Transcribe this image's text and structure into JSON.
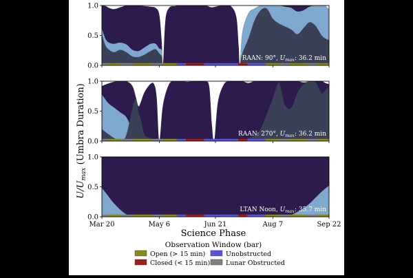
{
  "ylabel": "U/U",
  "ylabel_sub": "max",
  "ylabel_rest": " (Umbra Duration)",
  "xlabel": "Science Phase",
  "colors": {
    "dark_fill": "#2d1b4e",
    "light_fill": "#7fa8cf",
    "grey_fill": "#3a4055",
    "open": "#8a8a1a",
    "closed": "#9c1f1f",
    "unobstructed": "#5c54d6",
    "lunar": "#808080"
  },
  "legend": {
    "title": "Observation Window (bar)",
    "items": [
      {
        "label": "Open (> 15 min)",
        "color": "#8a8a1a"
      },
      {
        "label": "Unobstructed",
        "color": "#5c54d6"
      },
      {
        "label": "Closed (< 15 min)",
        "color": "#9c1f1f"
      },
      {
        "label": "Lunar Obstructed",
        "color": "#808080"
      }
    ]
  },
  "chart_data": [
    {
      "type": "area",
      "annotation_prefix": "RAAN: 90°, ",
      "annotation_u": "U",
      "annotation_sub": "max",
      "annotation_suffix": ": 36.2 min",
      "ylim": [
        0.0,
        1.0
      ],
      "yticks": [
        "0.0",
        "0.5",
        "1.0"
      ],
      "xlim": [
        0,
        186
      ],
      "xticks": [
        {
          "x": 0,
          "label": "Mar 20"
        },
        {
          "x": 47,
          "label": "May 6"
        },
        {
          "x": 93,
          "label": "Jun 21"
        },
        {
          "x": 140,
          "label": "Aug 7"
        },
        {
          "x": 186,
          "label": "Sep 22"
        }
      ],
      "x": [
        0,
        3,
        6,
        10,
        15,
        20,
        25,
        30,
        35,
        40,
        44,
        47,
        49,
        50,
        52,
        55,
        60,
        65,
        70,
        75,
        80,
        85,
        90,
        95,
        100,
        105,
        110,
        112,
        113,
        115,
        120,
        125,
        130,
        135,
        140,
        145,
        150,
        155,
        160,
        165,
        170,
        175,
        180,
        183,
        186
      ],
      "series": [
        {
          "values": [
            1.0,
            0.99,
            0.96,
            0.94,
            0.97,
            1.0,
            1.0,
            1.0,
            0.99,
            0.98,
            0.96,
            0.85,
            0.4,
            0.0,
            0.75,
            0.96,
            0.99,
            1.0,
            1.0,
            1.0,
            1.0,
            1.0,
            0.97,
            0.99,
            1.0,
            1.0,
            0.82,
            0.32,
            0.0,
            0.55,
            0.87,
            0.95,
            1.0,
            1.0,
            1.0,
            1.0,
            1.0,
            1.0,
            1.0,
            1.0,
            1.0,
            1.0,
            1.0,
            1.0,
            0.93
          ]
        },
        {
          "values": [
            0.62,
            0.44,
            0.38,
            0.36,
            0.38,
            0.35,
            0.26,
            0.24,
            0.3,
            0.36,
            0.36,
            0.28,
            0.25,
            0.0,
            0.0,
            0.0,
            0.0,
            0.0,
            0.0,
            0.0,
            0.0,
            0.0,
            0.0,
            0.0,
            0.0,
            0.0,
            0.0,
            0.0,
            0.0,
            0.55,
            0.87,
            0.95,
            1.0,
            1.0,
            1.0,
            1.0,
            0.98,
            0.96,
            0.9,
            0.92,
            0.98,
            1.0,
            1.0,
            1.0,
            0.93
          ]
        },
        {
          "values": [
            0.52,
            0.33,
            0.26,
            0.22,
            0.26,
            0.22,
            0.15,
            0.14,
            0.18,
            0.24,
            0.27,
            0.2,
            0.15,
            0.0,
            0.0,
            0.0,
            0.0,
            0.0,
            0.0,
            0.0,
            0.0,
            0.0,
            0.0,
            0.0,
            0.0,
            0.0,
            0.0,
            0.0,
            0.0,
            0.2,
            0.45,
            0.75,
            0.92,
            0.95,
            0.78,
            0.7,
            0.65,
            0.6,
            0.52,
            0.62,
            0.72,
            0.66,
            0.5,
            0.45,
            0.42
          ]
        }
      ]
    },
    {
      "type": "area",
      "annotation_prefix": "RAAN: 270°, ",
      "annotation_u": "U",
      "annotation_sub": "max",
      "annotation_suffix": ": 36.2 min",
      "ylim": [
        0.0,
        1.0
      ],
      "yticks": [
        "0.0",
        "0.5",
        "1.0"
      ],
      "xlim": [
        0,
        186
      ],
      "xticks": [
        {
          "x": 0,
          "label": "Mar 20"
        },
        {
          "x": 47,
          "label": "May 6"
        },
        {
          "x": 93,
          "label": "Jun 21"
        },
        {
          "x": 140,
          "label": "Aug 7"
        },
        {
          "x": 186,
          "label": "Sep 22"
        }
      ],
      "x": [
        0,
        5,
        10,
        15,
        20,
        25,
        28,
        30,
        32,
        35,
        40,
        43,
        45,
        47,
        50,
        55,
        60,
        65,
        70,
        75,
        80,
        85,
        88,
        90,
        92,
        95,
        100,
        105,
        110,
        115,
        120,
        125,
        130,
        135,
        140,
        143,
        145,
        147,
        150,
        155,
        160,
        165,
        170,
        175,
        180,
        183,
        186
      ],
      "series": [
        {
          "values": [
            0.92,
            0.96,
            0.99,
            1.0,
            1.0,
            0.92,
            0.72,
            0.58,
            0.66,
            0.82,
            0.96,
            0.94,
            0.7,
            0.0,
            0.6,
            0.95,
            1.0,
            1.0,
            0.99,
            1.0,
            1.0,
            1.0,
            0.9,
            0.3,
            0.0,
            0.65,
            0.95,
            1.0,
            1.0,
            1.0,
            0.97,
            1.0,
            1.0,
            1.0,
            1.0,
            1.0,
            1.0,
            1.0,
            1.0,
            1.0,
            1.0,
            0.98,
            0.99,
            1.0,
            1.0,
            0.97,
            0.95
          ]
        },
        {
          "values": [
            0.78,
            0.64,
            0.56,
            0.48,
            0.4,
            0.18,
            0.0,
            0.0,
            0.0,
            0.0,
            0.0,
            0.0,
            0.0,
            0.0,
            0.0,
            0.0,
            0.0,
            0.0,
            0.0,
            0.0,
            0.0,
            0.0,
            0.0,
            0.0,
            0.0,
            0.0,
            0.0,
            0.0,
            0.0,
            0.0,
            0.0,
            0.0,
            0.0,
            0.0,
            0.0,
            0.0,
            0.0,
            0.0,
            0.0,
            0.0,
            0.0,
            0.0,
            0.0,
            0.0,
            0.0,
            0.0,
            0.0
          ]
        },
        {
          "values": [
            0.2,
            0.12,
            0.05,
            0.0,
            0.1,
            0.55,
            0.7,
            0.48,
            0.35,
            0.1,
            0.05,
            0.02,
            0.0,
            0.0,
            0.0,
            0.0,
            0.0,
            0.0,
            0.0,
            0.0,
            0.0,
            0.0,
            0.0,
            0.0,
            0.0,
            0.0,
            0.0,
            0.0,
            0.0,
            0.0,
            0.05,
            0.1,
            0.2,
            0.45,
            0.72,
            0.9,
            0.98,
            0.85,
            0.6,
            0.55,
            0.8,
            0.95,
            1.0,
            0.98,
            0.8,
            0.85,
            0.9
          ]
        }
      ]
    },
    {
      "type": "area",
      "annotation_prefix": "LTAN Noon, ",
      "annotation_u": "U",
      "annotation_sub": "max",
      "annotation_suffix": ": 35.7 min",
      "ylim": [
        0.0,
        1.0
      ],
      "yticks": [
        "0.0",
        "0.5",
        "1.0"
      ],
      "xlim": [
        0,
        186
      ],
      "xticks": [
        {
          "x": 0,
          "label": "Mar 20"
        },
        {
          "x": 47,
          "label": "May 6"
        },
        {
          "x": 93,
          "label": "Jun 21"
        },
        {
          "x": 140,
          "label": "Aug 7"
        },
        {
          "x": 186,
          "label": "Sep 22"
        }
      ],
      "x": [
        0,
        186
      ],
      "series": [
        {
          "values": [
            1.0,
            1.0
          ]
        },
        {
          "values": [
            0.0,
            0.0
          ]
        },
        {
          "values": [
            0.0,
            0.0
          ]
        }
      ],
      "light_wedges": [
        {
          "x": [
            0,
            4,
            8,
            12,
            16,
            20,
            24,
            26
          ],
          "values": [
            0.48,
            0.38,
            0.27,
            0.18,
            0.1,
            0.04,
            0.01,
            0.0
          ]
        },
        {
          "x": [
            150,
            155,
            160,
            165,
            170,
            175,
            180,
            186
          ],
          "values": [
            0.0,
            0.03,
            0.08,
            0.14,
            0.22,
            0.32,
            0.42,
            0.52
          ]
        }
      ]
    }
  ]
}
